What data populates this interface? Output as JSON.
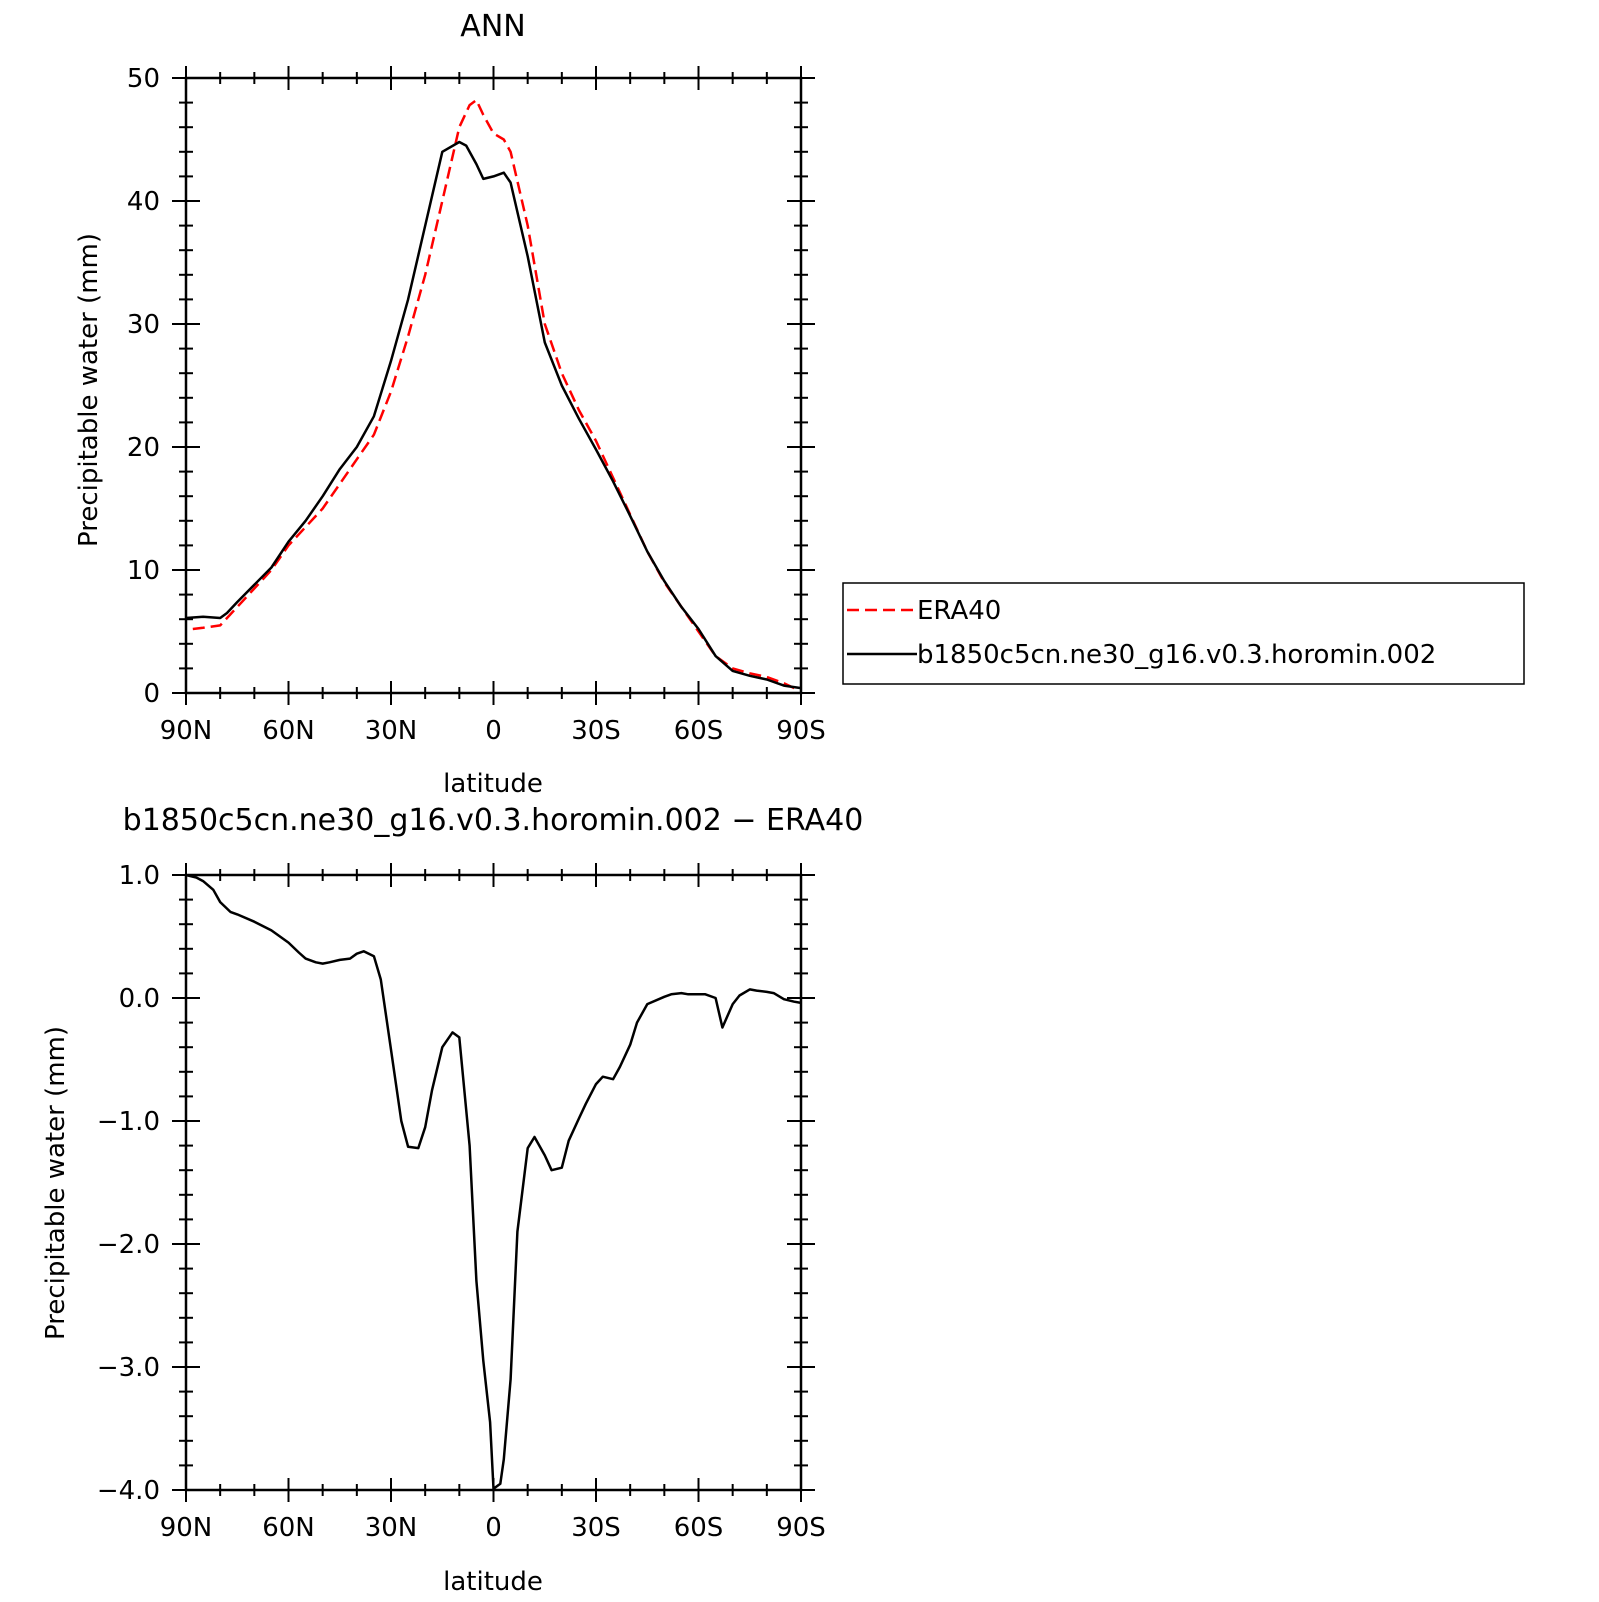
{
  "chart_data": [
    {
      "type": "line",
      "title": "ANN",
      "xlabel": "latitude",
      "ylabel": "Precipitable water (mm)",
      "xlim": [
        90,
        -90
      ],
      "ylim": [
        0,
        50
      ],
      "x_ticks": [
        90,
        60,
        30,
        0,
        -30,
        -60,
        -90
      ],
      "x_tick_labels": [
        "90N",
        "60N",
        "30N",
        "0",
        "30S",
        "60S",
        "90S"
      ],
      "y_ticks": [
        0,
        10,
        20,
        30,
        40,
        50
      ],
      "y_tick_labels": [
        "0",
        "10",
        "20",
        "30",
        "40",
        "50"
      ],
      "legend": {
        "placement": "right"
      },
      "series": [
        {
          "name": "ERA40",
          "color": "#ff0000",
          "dash": "dashed",
          "x": [
            88,
            85,
            80,
            75,
            70,
            65,
            60,
            55,
            50,
            45,
            40,
            35,
            30,
            25,
            20,
            15,
            10,
            7,
            5,
            3,
            0,
            -3,
            -5,
            -10,
            -15,
            -20,
            -25,
            -30,
            -35,
            -40,
            -45,
            -50,
            -55,
            -60,
            -65,
            -70,
            -75,
            -80,
            -85,
            -88
          ],
          "y": [
            5.2,
            5.3,
            5.5,
            7.0,
            8.5,
            10.0,
            12.0,
            13.5,
            15.0,
            17.0,
            19.0,
            21.0,
            24.5,
            29.0,
            34.0,
            40.0,
            46.0,
            47.8,
            48.2,
            47.0,
            45.5,
            45.0,
            44.0,
            38.0,
            30.0,
            26.0,
            23.0,
            20.5,
            17.5,
            14.5,
            11.5,
            9.0,
            7.0,
            5.0,
            3.0,
            2.0,
            1.6,
            1.3,
            0.8,
            0.4
          ]
        },
        {
          "name": "b1850c5cn.ne30_g16.v0.3.horomin.002",
          "color": "#000000",
          "dash": "solid",
          "x": [
            90,
            85,
            80,
            78,
            75,
            70,
            65,
            60,
            55,
            50,
            45,
            40,
            35,
            30,
            25,
            20,
            15,
            10,
            8,
            5,
            3,
            0,
            -3,
            -5,
            -10,
            -15,
            -20,
            -25,
            -30,
            -35,
            -40,
            -45,
            -50,
            -55,
            -60,
            -65,
            -70,
            -75,
            -80,
            -85,
            -90
          ],
          "y": [
            6.1,
            6.2,
            6.1,
            6.5,
            7.4,
            8.8,
            10.2,
            12.3,
            14.0,
            16.0,
            18.2,
            20.0,
            22.5,
            27.0,
            32.0,
            38.0,
            44.0,
            44.8,
            44.5,
            43.0,
            41.8,
            42.0,
            42.3,
            41.5,
            35.5,
            28.5,
            25.0,
            22.3,
            19.8,
            17.2,
            14.4,
            11.5,
            9.1,
            7.0,
            5.2,
            3.0,
            1.8,
            1.4,
            1.1,
            0.6,
            0.4
          ]
        }
      ]
    },
    {
      "type": "line",
      "title": "b1850c5cn.ne30_g16.v0.3.horomin.002 − ERA40",
      "xlabel": "latitude",
      "ylabel": "Precipitable water (mm)",
      "xlim": [
        90,
        -90
      ],
      "ylim": [
        -4.0,
        1.0
      ],
      "x_ticks": [
        90,
        60,
        30,
        0,
        -30,
        -60,
        -90
      ],
      "x_tick_labels": [
        "90N",
        "60N",
        "30N",
        "0",
        "30S",
        "60S",
        "90S"
      ],
      "y_ticks": [
        1.0,
        0.0,
        -1.0,
        -2.0,
        -3.0,
        -4.0
      ],
      "y_tick_labels": [
        "1.0",
        "0.0",
        "−1.0",
        "−2.0",
        "−3.0",
        "−4.0"
      ],
      "series": [
        {
          "color": "#000000",
          "dash": "solid",
          "x": [
            90,
            87,
            85,
            82,
            80,
            77,
            75,
            70,
            65,
            60,
            57,
            55,
            52,
            50,
            48,
            45,
            42,
            40,
            38,
            35,
            33,
            30,
            27,
            25,
            22,
            20,
            18,
            15,
            12,
            10,
            7,
            5,
            3,
            1,
            0,
            -2,
            -3,
            -5,
            -7,
            -10,
            -12,
            -15,
            -17,
            -20,
            -22,
            -25,
            -27,
            -30,
            -32,
            -35,
            -37,
            -40,
            -42,
            -45,
            -50,
            -52,
            -55,
            -57,
            -60,
            -62,
            -65,
            -67,
            -70,
            -72,
            -75,
            -77,
            -80,
            -82,
            -85,
            -88,
            -90
          ],
          "y": [
            1.0,
            0.98,
            0.95,
            0.88,
            0.78,
            0.7,
            0.68,
            0.62,
            0.55,
            0.45,
            0.37,
            0.32,
            0.29,
            0.28,
            0.29,
            0.31,
            0.32,
            0.36,
            0.38,
            0.34,
            0.15,
            -0.42,
            -1.0,
            -1.21,
            -1.22,
            -1.05,
            -0.75,
            -0.4,
            -0.28,
            -0.32,
            -1.2,
            -2.3,
            -2.95,
            -3.45,
            -3.99,
            -3.95,
            -3.75,
            -3.1,
            -1.9,
            -1.22,
            -1.13,
            -1.28,
            -1.4,
            -1.38,
            -1.16,
            -0.98,
            -0.86,
            -0.7,
            -0.64,
            -0.66,
            -0.56,
            -0.38,
            -0.2,
            -0.05,
            0.01,
            0.03,
            0.04,
            0.03,
            0.03,
            0.03,
            0.0,
            -0.24,
            -0.05,
            0.02,
            0.07,
            0.06,
            0.05,
            0.04,
            -0.01,
            -0.03,
            -0.04
          ]
        }
      ]
    }
  ]
}
